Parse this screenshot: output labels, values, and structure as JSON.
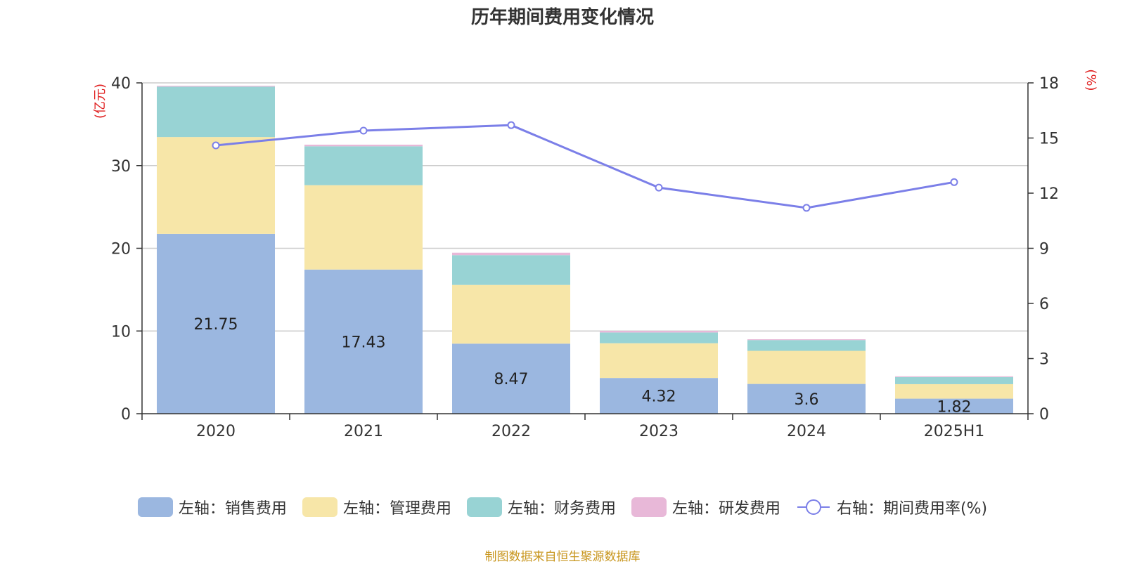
{
  "chart_data": {
    "type": "bar",
    "title": "历年期间费用变化情况",
    "categories": [
      "2020",
      "2021",
      "2022",
      "2023",
      "2024",
      "2025H1"
    ],
    "series": [
      {
        "name": "左轴：销售费用",
        "type": "bar",
        "axis": "left",
        "color": "#9bb7e0",
        "values": [
          21.75,
          17.43,
          8.47,
          4.32,
          3.6,
          1.82
        ],
        "labels_shown": true
      },
      {
        "name": "左轴：管理费用",
        "type": "bar",
        "axis": "left",
        "color": "#f7e6a8",
        "values": [
          11.7,
          10.2,
          7.1,
          4.2,
          4.0,
          1.75
        ]
      },
      {
        "name": "左轴：财务费用",
        "type": "bar",
        "axis": "left",
        "color": "#98d3d4",
        "values": [
          6.1,
          4.7,
          3.6,
          1.3,
          1.3,
          0.85
        ]
      },
      {
        "name": "左轴：研发费用",
        "type": "bar",
        "axis": "left",
        "color": "#e8b8d8",
        "values": [
          0.1,
          0.2,
          0.3,
          0.2,
          0.1,
          0.1
        ]
      },
      {
        "name": "右轴：期间费用率(%)",
        "type": "line",
        "axis": "right",
        "color": "#7b7fe8",
        "values": [
          14.6,
          15.4,
          15.7,
          12.3,
          11.2,
          12.6
        ]
      }
    ],
    "left_axis": {
      "label": "(亿元)",
      "range": [
        0,
        40
      ],
      "ticks": [
        0,
        10,
        20,
        30,
        40
      ]
    },
    "right_axis": {
      "label": "(%)",
      "range": [
        0,
        18
      ],
      "ticks": [
        0,
        3,
        6,
        9,
        12,
        15,
        18
      ]
    },
    "grid": true,
    "legend_position": "bottom"
  },
  "source_note": "制图数据来自恒生聚源数据库"
}
